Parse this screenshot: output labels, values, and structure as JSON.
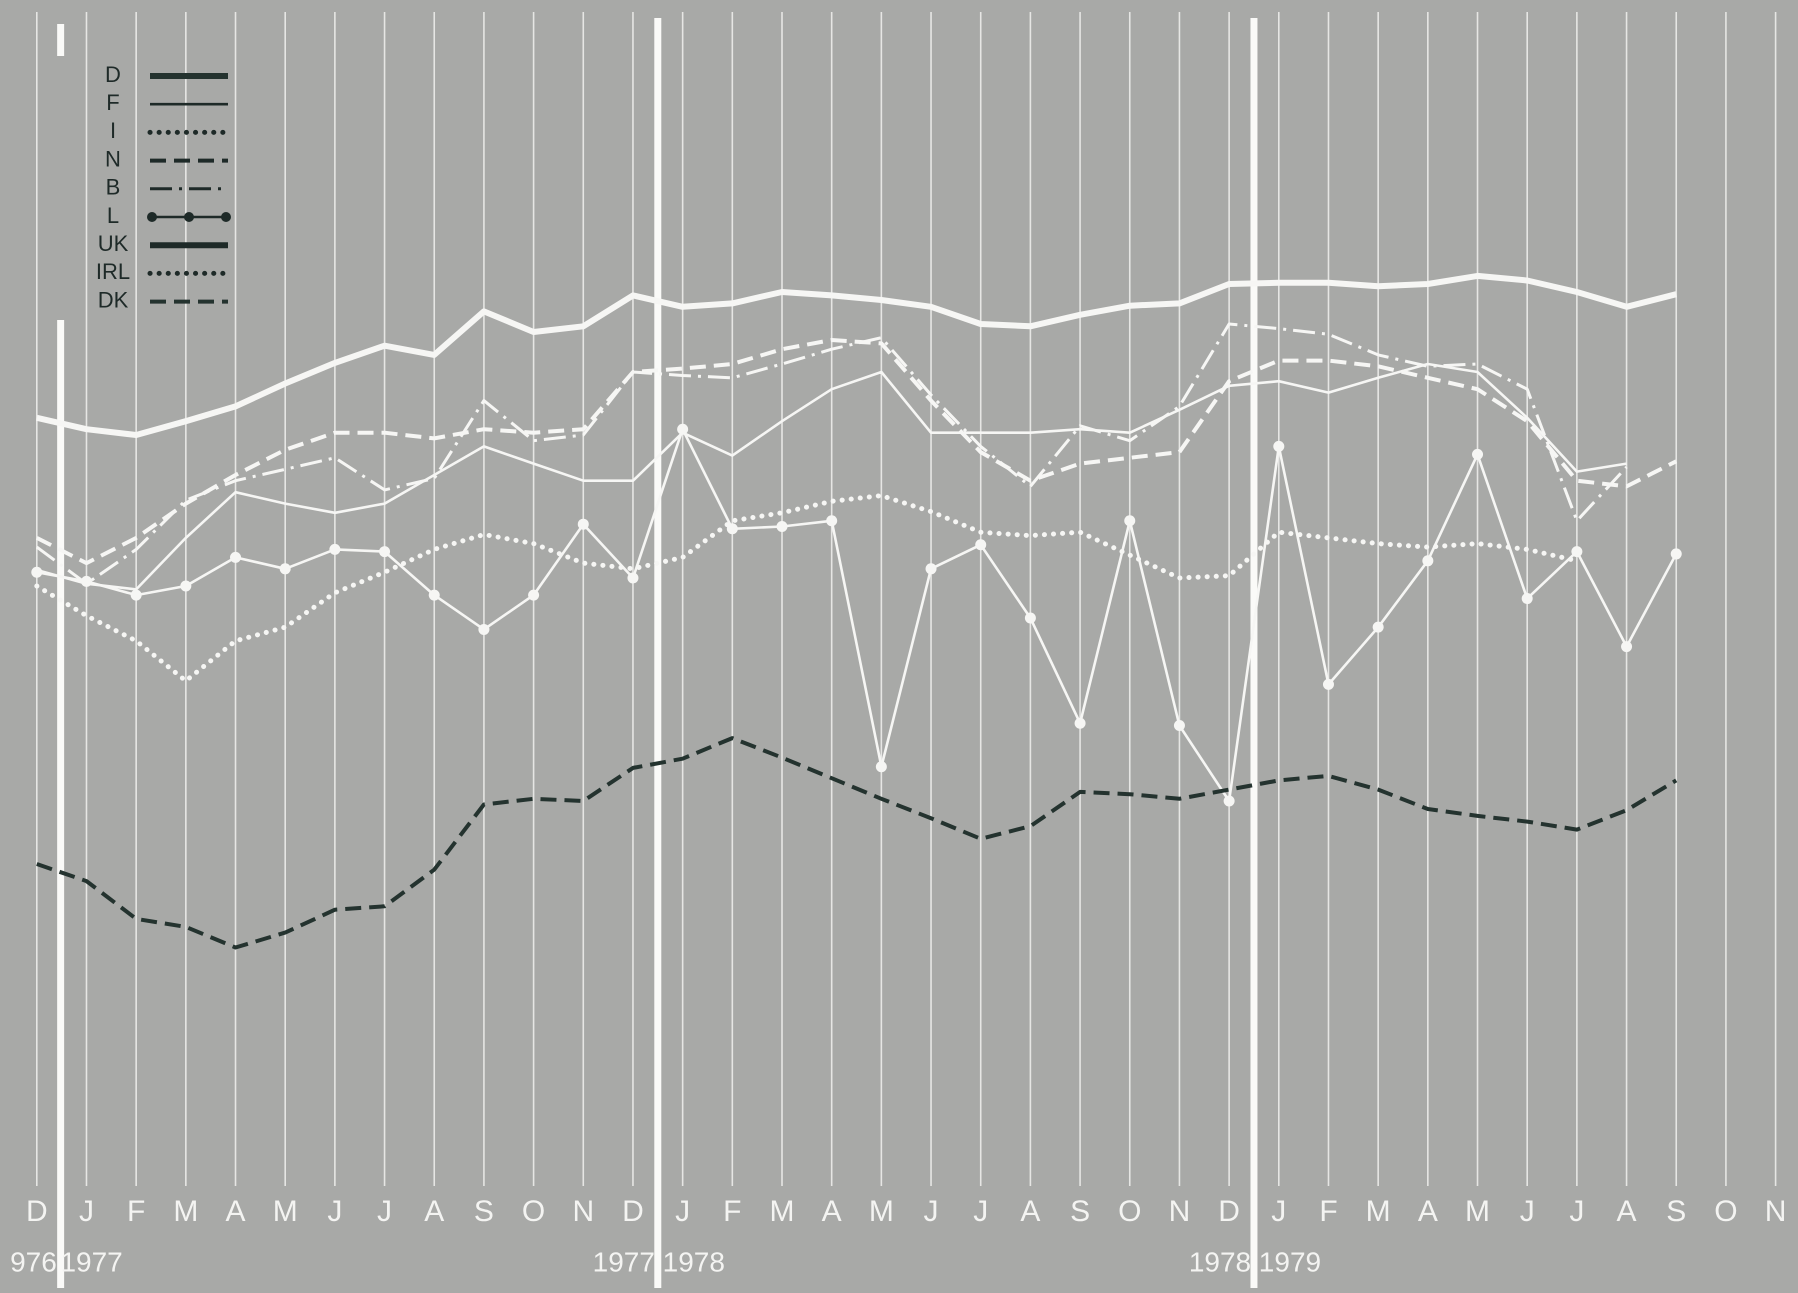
{
  "chart_data": {
    "type": "line",
    "categories": [
      "D",
      "J",
      "F",
      "M",
      "A",
      "M",
      "J",
      "J",
      "A",
      "S",
      "O",
      "N",
      "D",
      "J",
      "F",
      "M",
      "A",
      "M",
      "J",
      "J",
      "A",
      "S",
      "O",
      "N",
      "D",
      "J",
      "F",
      "M",
      "A",
      "M",
      "J",
      "J",
      "A",
      "S",
      "O",
      "N"
    ],
    "year_labels": [
      "976",
      "1977",
      "1977",
      "1978",
      "1978",
      "1979"
    ],
    "ylim": [
      0,
      100
    ],
    "series": [
      {
        "name": "D",
        "color": "#24332f",
        "style": "thick",
        "values": [
          null,
          null,
          null,
          null,
          null,
          null,
          null,
          null,
          null,
          null,
          null,
          null,
          null,
          null,
          null,
          null,
          null,
          null,
          null,
          null,
          null,
          null,
          null,
          null,
          null,
          null,
          null,
          null,
          null,
          null,
          null,
          null,
          null,
          null,
          null,
          null
        ]
      },
      {
        "name": "F",
        "color": "#f6f6f4",
        "style": "solid",
        "values": [
          54.2,
          53,
          52.5,
          57,
          61,
          60,
          59.2,
          60,
          62.5,
          65,
          63.5,
          62,
          62,
          66.2,
          64.2,
          67.2,
          70,
          71.5,
          66.2,
          66.2,
          66.2,
          66.5,
          66.2,
          68.2,
          70.3,
          70.7,
          69.7,
          71,
          72.2,
          71.5,
          67.5,
          62.8,
          63.5,
          null,
          null,
          null
        ]
      },
      {
        "name": "I",
        "color": "#f6f6f4",
        "style": "dotted",
        "values": [
          52.8,
          50.2,
          48,
          44.5,
          48,
          49.2,
          52.2,
          54,
          56,
          57.3,
          56.5,
          54.8,
          54.3,
          55.3,
          58.5,
          59.2,
          60.2,
          60.7,
          59.3,
          57.5,
          57.2,
          57.5,
          55.5,
          53.5,
          53.7,
          57.5,
          57,
          56.5,
          56.2,
          56.5,
          56,
          55,
          null,
          null,
          null,
          null
        ]
      },
      {
        "name": "N",
        "color": "#f6f6f4",
        "style": "dashed",
        "values": [
          57,
          54.8,
          57,
          60,
          62.5,
          64.7,
          66.2,
          66.2,
          65.7,
          66.5,
          66.2,
          66.5,
          71.5,
          71.8,
          72.2,
          73.5,
          74.3,
          74,
          69,
          64.5,
          62,
          63.5,
          64,
          64.5,
          70.7,
          72.5,
          72.5,
          72,
          71,
          70,
          67.2,
          62,
          61.5,
          63.7,
          null,
          null
        ]
      },
      {
        "name": "B",
        "color": "#f6f6f4",
        "style": "dash-dot",
        "values": [
          56.2,
          53,
          56,
          60.3,
          62,
          63,
          64,
          61.2,
          62.2,
          69,
          65.5,
          66,
          71.5,
          71.2,
          71,
          72.2,
          73.5,
          74.5,
          69.5,
          65,
          61.5,
          66.8,
          65.5,
          68.5,
          75.7,
          75.3,
          74.8,
          73,
          72,
          72.2,
          70,
          58.5,
          63.2,
          null,
          null,
          null
        ]
      },
      {
        "name": "L",
        "color": "#f6f6f4",
        "style": "dot-line",
        "values": [
          54,
          53.2,
          52,
          52.8,
          55.3,
          54.3,
          56,
          55.8,
          52,
          49,
          52,
          58.2,
          53.5,
          66.5,
          57.8,
          58,
          58.5,
          37,
          54.3,
          56.4,
          50,
          40.8,
          58.5,
          40.6,
          34,
          65,
          44.2,
          49.2,
          55,
          64.3,
          51.7,
          55.8,
          47.5,
          55.6,
          null,
          null
        ]
      },
      {
        "name": "UK",
        "color": "#f6f6f4",
        "style": "thick",
        "values": [
          67.5,
          66.5,
          66,
          67.2,
          68.5,
          70.5,
          72.3,
          73.8,
          73,
          76.8,
          75,
          75.5,
          78.2,
          77.2,
          77.5,
          78.5,
          78.2,
          77.8,
          77.2,
          75.7,
          75.5,
          76.5,
          77.3,
          77.5,
          79.2,
          79.3,
          79.3,
          79,
          79.2,
          79.9,
          79.5,
          78.5,
          77.2,
          78.3,
          null,
          null
        ]
      },
      {
        "name": "IRL",
        "color": "#f6f6f4",
        "style": "dotted",
        "values": [
          null,
          null,
          null,
          null,
          null,
          null,
          null,
          null,
          null,
          null,
          null,
          null,
          null,
          null,
          null,
          null,
          null,
          null,
          null,
          null,
          null,
          null,
          null,
          null,
          null,
          null,
          null,
          null,
          null,
          null,
          null,
          null,
          null,
          null,
          null,
          null
        ]
      },
      {
        "name": "DK",
        "color": "#24332f",
        "style": "dashed",
        "values": [
          28.5,
          27,
          23.7,
          23,
          21.2,
          22.5,
          24.5,
          24.8,
          28,
          33.7,
          34.2,
          34,
          36.9,
          37.7,
          39.5,
          37.8,
          36,
          34.2,
          32.5,
          30.7,
          31.8,
          34.8,
          34.6,
          34.2,
          35,
          35.8,
          36.2,
          35,
          33.3,
          32.7,
          32.2,
          31.5,
          33.2,
          35.8,
          null,
          null
        ]
      }
    ]
  }
}
